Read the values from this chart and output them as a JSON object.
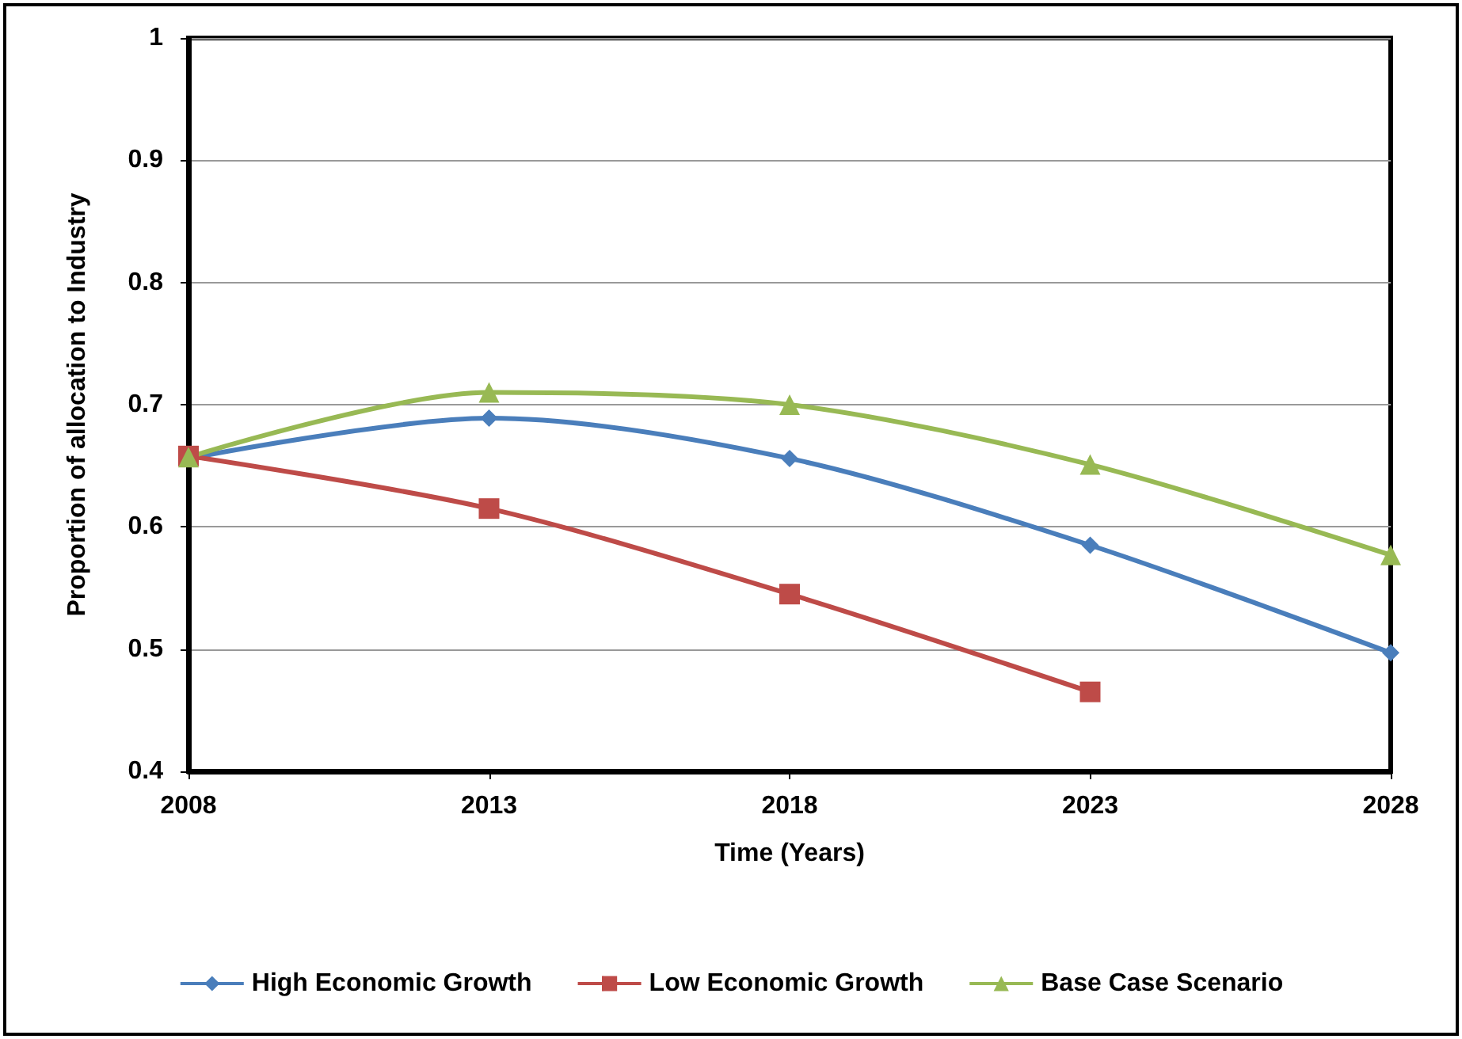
{
  "chart_data": {
    "type": "line",
    "xlabel": "Time (Years)",
    "ylabel": "Proportion of allocation to Industry",
    "x": [
      2008,
      2013,
      2018,
      2023,
      2028
    ],
    "series": [
      {
        "name": "High Economic Growth",
        "color": "#4a7ebb",
        "marker": "diamond",
        "values": [
          0.656,
          0.689,
          0.656,
          0.585,
          0.497
        ]
      },
      {
        "name": "Low Economic Growth",
        "color": "#be4b48",
        "marker": "square",
        "values": [
          0.658,
          0.615,
          0.545,
          0.465,
          null
        ]
      },
      {
        "name": "Base Case Scenario",
        "color": "#98b954",
        "marker": "triangle",
        "values": [
          0.657,
          0.71,
          0.7,
          0.651,
          0.577
        ]
      }
    ],
    "xlim": [
      2008,
      2028
    ],
    "xticks": [
      2008,
      2013,
      2018,
      2023,
      2028
    ],
    "ylim": [
      0.4,
      1
    ],
    "yticks": [
      0.4,
      0.5,
      0.6,
      0.7,
      0.8,
      0.9,
      1
    ],
    "grid": "y",
    "legend": "bottom"
  }
}
